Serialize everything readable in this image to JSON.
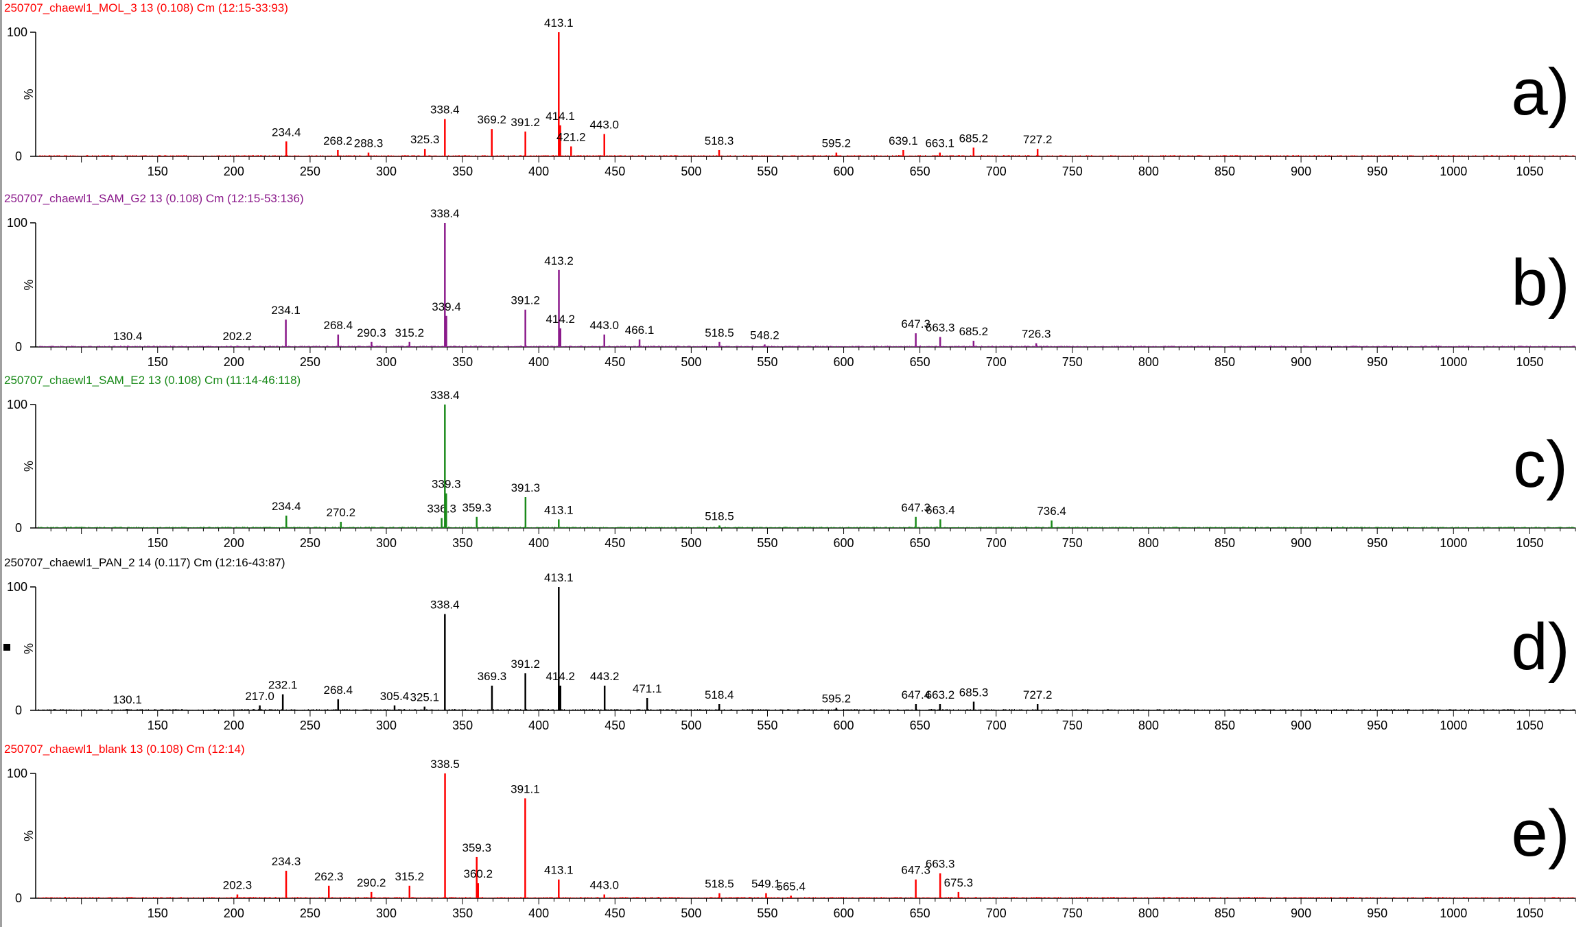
{
  "chart_data": [
    {
      "type": "line",
      "panel": "a)",
      "title": "250707_chaewl1_MOL_3 13 (0.108) Cm (12:15-33:93)",
      "color": "#ff0000",
      "xlim": [
        70,
        1080
      ],
      "ylim": [
        0,
        100
      ],
      "xticks": [
        150,
        200,
        250,
        300,
        350,
        400,
        450,
        500,
        550,
        600,
        650,
        700,
        750,
        800,
        850,
        900,
        950,
        1000,
        1050
      ],
      "yticks": [
        "0",
        "%",
        "100"
      ],
      "peaks": [
        {
          "x": 234.4,
          "y": 12,
          "label": "234.4"
        },
        {
          "x": 268.2,
          "y": 5,
          "label": "268.2"
        },
        {
          "x": 288.3,
          "y": 3,
          "label": "288.3"
        },
        {
          "x": 325.3,
          "y": 6,
          "label": "325.3"
        },
        {
          "x": 338.4,
          "y": 30,
          "label": "338.4"
        },
        {
          "x": 369.2,
          "y": 22,
          "label": "369.2"
        },
        {
          "x": 391.2,
          "y": 20,
          "label": "391.2"
        },
        {
          "x": 413.1,
          "y": 100,
          "label": "413.1"
        },
        {
          "x": 414.1,
          "y": 25,
          "label": "414.1"
        },
        {
          "x": 421.2,
          "y": 8,
          "label": "421.2"
        },
        {
          "x": 443.0,
          "y": 18,
          "label": "443.0"
        },
        {
          "x": 518.3,
          "y": 5,
          "label": "518.3"
        },
        {
          "x": 595.2,
          "y": 3,
          "label": "595.2"
        },
        {
          "x": 639.1,
          "y": 5,
          "label": "639.1"
        },
        {
          "x": 663.1,
          "y": 3,
          "label": "663.1"
        },
        {
          "x": 685.2,
          "y": 7,
          "label": "685.2"
        },
        {
          "x": 727.2,
          "y": 6,
          "label": "727.2"
        }
      ]
    },
    {
      "type": "line",
      "panel": "b)",
      "title": "250707_chaewl1_SAM_G2 13 (0.108) Cm (12:15-53:136)",
      "color": "#8b1a8b",
      "xlim": [
        70,
        1080
      ],
      "ylim": [
        0,
        100
      ],
      "xticks": [
        150,
        200,
        250,
        300,
        350,
        400,
        450,
        500,
        550,
        600,
        650,
        700,
        750,
        800,
        850,
        900,
        950,
        1000,
        1050
      ],
      "yticks": [
        "0",
        "%",
        "100"
      ],
      "peaks": [
        {
          "x": 130.4,
          "y": 1,
          "label": "130.4"
        },
        {
          "x": 202.2,
          "y": 1,
          "label": "202.2"
        },
        {
          "x": 234.1,
          "y": 22,
          "label": "234.1"
        },
        {
          "x": 268.4,
          "y": 10,
          "label": "268.4"
        },
        {
          "x": 290.3,
          "y": 4,
          "label": "290.3"
        },
        {
          "x": 315.2,
          "y": 4,
          "label": "315.2"
        },
        {
          "x": 338.4,
          "y": 100,
          "label": "338.4"
        },
        {
          "x": 339.4,
          "y": 25,
          "label": "339.4"
        },
        {
          "x": 391.2,
          "y": 30,
          "label": "391.2"
        },
        {
          "x": 413.2,
          "y": 62,
          "label": "413.2"
        },
        {
          "x": 414.2,
          "y": 15,
          "label": "414.2"
        },
        {
          "x": 443.0,
          "y": 10,
          "label": "443.0"
        },
        {
          "x": 466.1,
          "y": 6,
          "label": "466.1"
        },
        {
          "x": 518.5,
          "y": 4,
          "label": "518.5"
        },
        {
          "x": 548.2,
          "y": 2,
          "label": "548.2"
        },
        {
          "x": 647.3,
          "y": 11,
          "label": "647.3"
        },
        {
          "x": 663.3,
          "y": 8,
          "label": "663.3"
        },
        {
          "x": 685.2,
          "y": 5,
          "label": "685.2"
        },
        {
          "x": 726.3,
          "y": 3,
          "label": "726.3"
        }
      ]
    },
    {
      "type": "line",
      "panel": "c)",
      "title": "250707_chaewl1_SAM_E2 13 (0.108) Cm (11:14-46:118)",
      "color": "#1a8a1a",
      "xlim": [
        70,
        1080
      ],
      "ylim": [
        0,
        100
      ],
      "xticks": [
        150,
        200,
        250,
        300,
        350,
        400,
        450,
        500,
        550,
        600,
        650,
        700,
        750,
        800,
        850,
        900,
        950,
        1000,
        1050
      ],
      "yticks": [
        "0",
        "%",
        "100"
      ],
      "peaks": [
        {
          "x": 234.4,
          "y": 10,
          "label": "234.4"
        },
        {
          "x": 270.2,
          "y": 5,
          "label": "270.2"
        },
        {
          "x": 336.3,
          "y": 8,
          "label": "336.3"
        },
        {
          "x": 338.4,
          "y": 100,
          "label": "338.4"
        },
        {
          "x": 339.3,
          "y": 28,
          "label": "339.3"
        },
        {
          "x": 359.3,
          "y": 9,
          "label": "359.3"
        },
        {
          "x": 391.3,
          "y": 25,
          "label": "391.3"
        },
        {
          "x": 413.1,
          "y": 7,
          "label": "413.1"
        },
        {
          "x": 518.5,
          "y": 2,
          "label": "518.5"
        },
        {
          "x": 647.3,
          "y": 9,
          "label": "647.3"
        },
        {
          "x": 663.4,
          "y": 7,
          "label": "663.4"
        },
        {
          "x": 736.4,
          "y": 6,
          "label": "736.4"
        }
      ]
    },
    {
      "type": "line",
      "panel": "d)",
      "title": "250707_chaewl1_PAN_2 14 (0.117) Cm (12:16-43:87)",
      "color": "#000000",
      "xlim": [
        70,
        1080
      ],
      "ylim": [
        0,
        100
      ],
      "xticks": [
        150,
        200,
        250,
        300,
        350,
        400,
        450,
        500,
        550,
        600,
        650,
        700,
        750,
        800,
        850,
        900,
        950,
        1000,
        1050
      ],
      "yticks": [
        "0",
        "%",
        "100"
      ],
      "peaks": [
        {
          "x": 130.1,
          "y": 1,
          "label": "130.1"
        },
        {
          "x": 217.0,
          "y": 4,
          "label": "217.0"
        },
        {
          "x": 232.1,
          "y": 13,
          "label": "232.1"
        },
        {
          "x": 268.4,
          "y": 9,
          "label": "268.4"
        },
        {
          "x": 305.4,
          "y": 4,
          "label": "305.4"
        },
        {
          "x": 325.1,
          "y": 3,
          "label": "325.1"
        },
        {
          "x": 338.4,
          "y": 78,
          "label": "338.4"
        },
        {
          "x": 369.3,
          "y": 20,
          "label": "369.3"
        },
        {
          "x": 391.2,
          "y": 30,
          "label": "391.2"
        },
        {
          "x": 413.1,
          "y": 100,
          "label": "413.1"
        },
        {
          "x": 414.2,
          "y": 20,
          "label": "414.2"
        },
        {
          "x": 443.2,
          "y": 20,
          "label": "443.2"
        },
        {
          "x": 471.1,
          "y": 10,
          "label": "471.1"
        },
        {
          "x": 518.4,
          "y": 5,
          "label": "518.4"
        },
        {
          "x": 595.2,
          "y": 2,
          "label": "595.2"
        },
        {
          "x": 647.4,
          "y": 5,
          "label": "647.4"
        },
        {
          "x": 663.2,
          "y": 5,
          "label": "663.2"
        },
        {
          "x": 685.3,
          "y": 7,
          "label": "685.3"
        },
        {
          "x": 727.2,
          "y": 5,
          "label": "727.2"
        }
      ]
    },
    {
      "type": "line",
      "panel": "e)",
      "title": "250707_chaewl1_blank 13 (0.108) Cm (12:14)",
      "color": "#ff0000",
      "xlim": [
        70,
        1080
      ],
      "ylim": [
        0,
        100
      ],
      "xticks": [
        150,
        200,
        250,
        300,
        350,
        400,
        450,
        500,
        550,
        600,
        650,
        700,
        750,
        800,
        850,
        900,
        950,
        1000,
        1050
      ],
      "yticks": [
        "0",
        "%",
        "100"
      ],
      "peaks": [
        {
          "x": 202.3,
          "y": 3,
          "label": "202.3"
        },
        {
          "x": 234.3,
          "y": 22,
          "label": "234.3"
        },
        {
          "x": 262.3,
          "y": 10,
          "label": "262.3"
        },
        {
          "x": 290.2,
          "y": 5,
          "label": "290.2"
        },
        {
          "x": 315.2,
          "y": 10,
          "label": "315.2"
        },
        {
          "x": 338.5,
          "y": 100,
          "label": "338.5"
        },
        {
          "x": 359.3,
          "y": 33,
          "label": "359.3"
        },
        {
          "x": 360.2,
          "y": 12,
          "label": "360.2"
        },
        {
          "x": 391.1,
          "y": 80,
          "label": "391.1"
        },
        {
          "x": 413.1,
          "y": 15,
          "label": "413.1"
        },
        {
          "x": 443.0,
          "y": 3,
          "label": "443.0"
        },
        {
          "x": 518.5,
          "y": 4,
          "label": "518.5"
        },
        {
          "x": 549.1,
          "y": 4,
          "label": "549.1"
        },
        {
          "x": 565.4,
          "y": 2,
          "label": "565.4"
        },
        {
          "x": 647.3,
          "y": 15,
          "label": "647.3"
        },
        {
          "x": 663.3,
          "y": 20,
          "label": "663.3"
        },
        {
          "x": 675.3,
          "y": 5,
          "label": "675.3"
        }
      ]
    }
  ]
}
